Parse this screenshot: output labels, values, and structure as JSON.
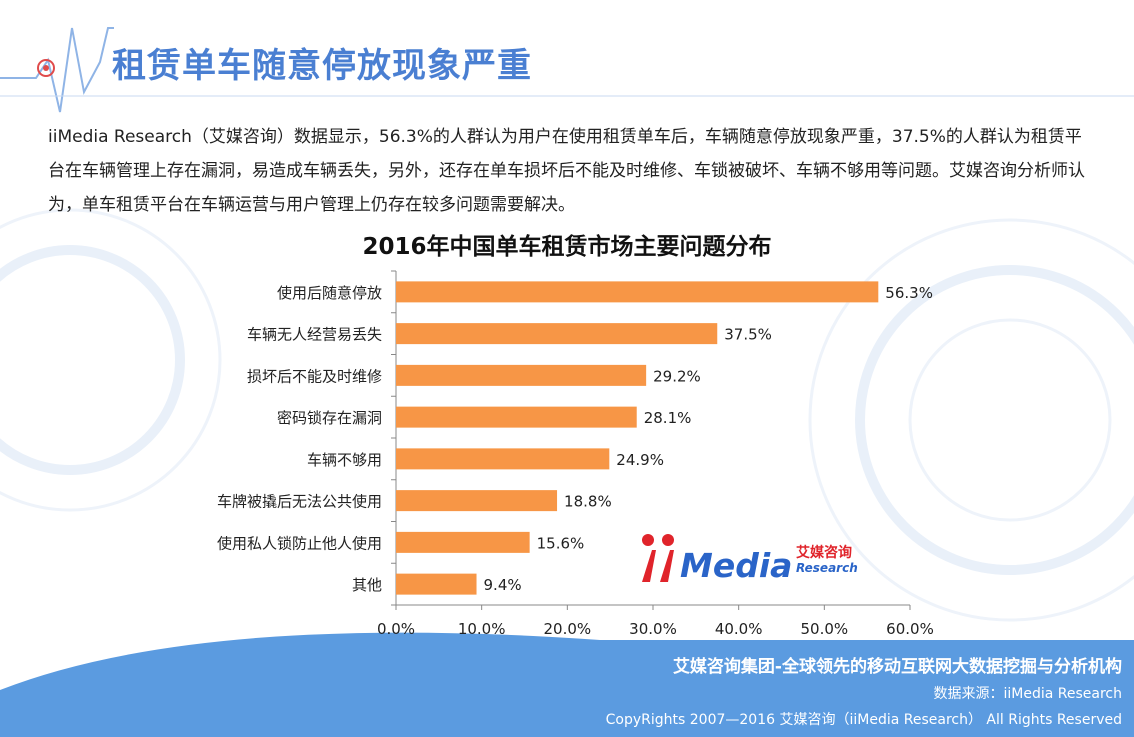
{
  "header": {
    "title": "租赁单车随意停放现象严重"
  },
  "intro": {
    "text": "iiMedia Research（艾媒咨询）数据显示，56.3%的人群认为用户在使用租赁单车后，车辆随意停放现象严重，37.5%的人群认为租赁平台在车辆管理上存在漏洞，易造成车辆丢失，另外，还存在单车损坏后不能及时维修、车锁被破坏、车辆不够用等问题。艾媒咨询分析师认为，单车租赁平台在车辆运营与用户管理上仍存在较多问题需要解决。"
  },
  "chart_data": {
    "type": "bar",
    "orientation": "horizontal",
    "title": "2016年中国单车租赁市场主要问题分布",
    "categories": [
      "使用后随意停放",
      "车辆无人经营易丢失",
      "损坏后不能及时维修",
      "密码锁存在漏洞",
      "车辆不够用",
      "车牌被撬后无法公共使用",
      "使用私人锁防止他人使用",
      "其他"
    ],
    "values": [
      56.3,
      37.5,
      29.2,
      28.1,
      24.9,
      18.8,
      15.6,
      9.4
    ],
    "value_labels": [
      "56.3%",
      "37.5%",
      "29.2%",
      "28.1%",
      "24.9%",
      "18.8%",
      "15.6%",
      "9.4%"
    ],
    "xlim": [
      0,
      60
    ],
    "xticks": [
      0,
      10,
      20,
      30,
      40,
      50,
      60
    ],
    "xtick_labels": [
      "0.0%",
      "10.0%",
      "20.0%",
      "30.0%",
      "40.0%",
      "50.0%",
      "60.0%"
    ],
    "bar_color": "#f79646",
    "grid": false,
    "legend": "none"
  },
  "logo": {
    "word": "Media",
    "cn": "艾媒咨询",
    "en": "Research"
  },
  "footer": {
    "slogan": "艾媒咨询集团-全球领先的移动互联网大数据挖掘与分析机构",
    "source": "数据来源：iiMedia Research",
    "copyright": "CopyRights 2007—2016 艾媒咨询（iiMedia Research） All Rights Reserved"
  },
  "colors": {
    "accent": "#4a7fd2",
    "footer_band": "#5b9be0",
    "bar": "#f79646"
  }
}
